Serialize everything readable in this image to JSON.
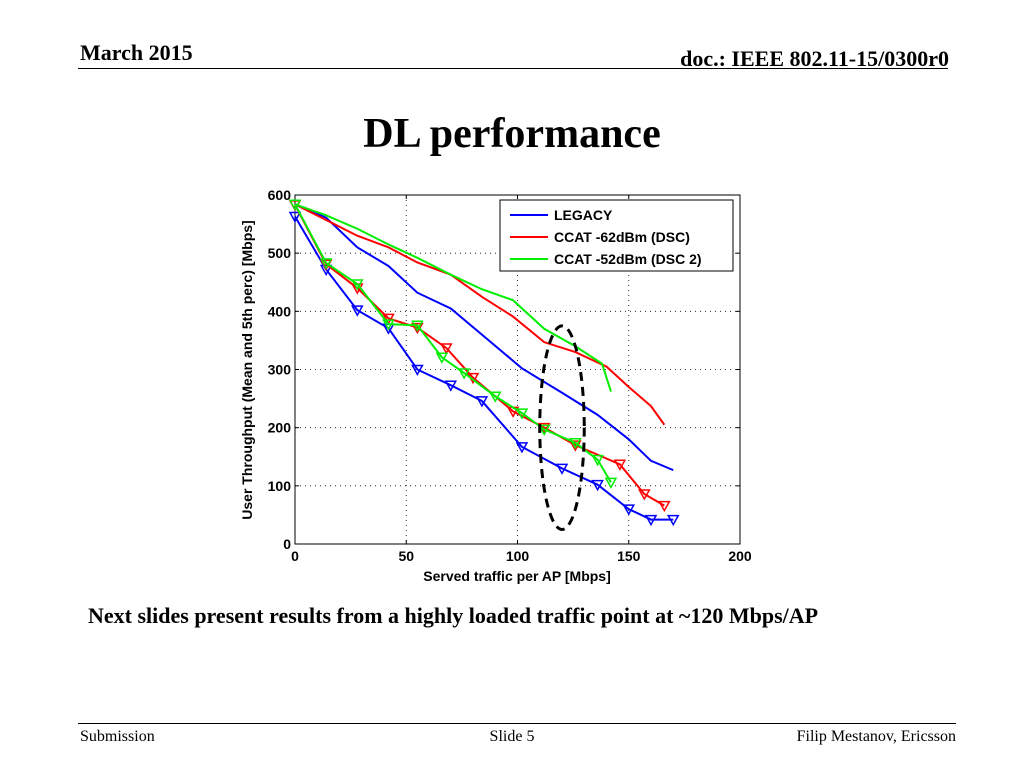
{
  "header": {
    "date": "March 2015",
    "doc": "doc.: IEEE 802.11-15/0300r0"
  },
  "title": "DL performance",
  "body_text": "Next slides present results from a highly loaded traffic point at ~120 Mbps/AP",
  "footer": {
    "left": "Submission",
    "center": "Slide 5",
    "right": "Filip Mestanov, Ericsson"
  },
  "chart_data": {
    "type": "line",
    "xlabel": "Served traffic per AP [Mbps]",
    "ylabel": "User Throughput (Mean and 5th perc) [Mbps]",
    "xlim": [
      0,
      200
    ],
    "ylim": [
      0,
      600
    ],
    "xticks": [
      0,
      50,
      100,
      150,
      200
    ],
    "yticks": [
      0,
      100,
      200,
      300,
      400,
      500,
      600
    ],
    "grid": true,
    "legend_position": "top-right",
    "series": [
      {
        "name": "LEGACY",
        "color": "#0000ff",
        "mean": [
          [
            0,
            584
          ],
          [
            14,
            561
          ],
          [
            28,
            510
          ],
          [
            42,
            478
          ],
          [
            55,
            432
          ],
          [
            70,
            405
          ],
          [
            84,
            360
          ],
          [
            102,
            302
          ],
          [
            120,
            260
          ],
          [
            136,
            222
          ],
          [
            150,
            180
          ],
          [
            160,
            143
          ],
          [
            170,
            127
          ]
        ],
        "p5": [
          [
            0,
            563
          ],
          [
            14,
            472
          ],
          [
            28,
            402
          ],
          [
            42,
            371
          ],
          [
            55,
            300
          ],
          [
            70,
            273
          ],
          [
            84,
            246
          ],
          [
            102,
            167
          ],
          [
            120,
            130
          ],
          [
            136,
            102
          ],
          [
            150,
            60
          ],
          [
            160,
            42
          ],
          [
            170,
            42
          ]
        ]
      },
      {
        "name": "CCAT -62dBm (DSC)",
        "color": "#ff0000",
        "mean": [
          [
            0,
            584
          ],
          [
            14,
            557
          ],
          [
            28,
            530
          ],
          [
            42,
            510
          ],
          [
            55,
            484
          ],
          [
            70,
            463
          ],
          [
            84,
            425
          ],
          [
            98,
            391
          ],
          [
            112,
            347
          ],
          [
            126,
            330
          ],
          [
            140,
            305
          ],
          [
            150,
            270
          ],
          [
            160,
            237
          ],
          [
            166,
            205
          ]
        ],
        "p5": [
          [
            0,
            583
          ],
          [
            14,
            481
          ],
          [
            28,
            440
          ],
          [
            42,
            388
          ],
          [
            55,
            372
          ],
          [
            68,
            337
          ],
          [
            80,
            286
          ],
          [
            98,
            228
          ],
          [
            112,
            200
          ],
          [
            126,
            170
          ],
          [
            146,
            137
          ],
          [
            157,
            86
          ],
          [
            166,
            66
          ]
        ]
      },
      {
        "name": "CCAT -52dBm (DSC 2)",
        "color": "#00ee00",
        "mean": [
          [
            0,
            584
          ],
          [
            14,
            565
          ],
          [
            28,
            542
          ],
          [
            42,
            515
          ],
          [
            55,
            492
          ],
          [
            70,
            463
          ],
          [
            84,
            438
          ],
          [
            98,
            419
          ],
          [
            112,
            370
          ],
          [
            126,
            340
          ],
          [
            138,
            310
          ],
          [
            142,
            262
          ]
        ],
        "p5": [
          [
            0,
            584
          ],
          [
            14,
            483
          ],
          [
            28,
            447
          ],
          [
            42,
            378
          ],
          [
            55,
            376
          ],
          [
            66,
            321
          ],
          [
            76,
            294
          ],
          [
            90,
            254
          ],
          [
            102,
            225
          ],
          [
            112,
            197
          ],
          [
            126,
            174
          ],
          [
            136,
            145
          ],
          [
            142,
            106
          ]
        ]
      }
    ],
    "annotation": {
      "shape": "dashed-ellipse",
      "x_center": 120,
      "y_center": 200,
      "x_radius": 10,
      "y_radius": 175
    }
  }
}
